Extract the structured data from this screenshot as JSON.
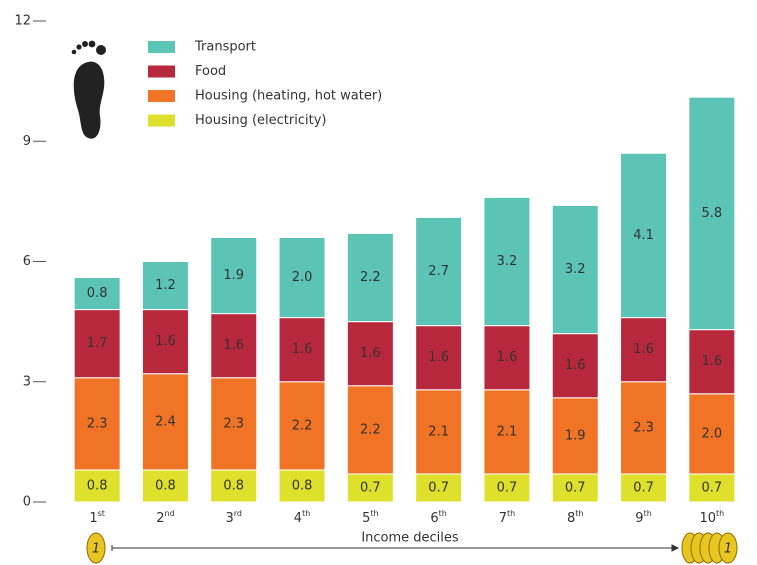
{
  "chart_data": {
    "type": "stacked_bar",
    "categories": [
      "1st",
      "2nd",
      "3rd",
      "4th",
      "5th",
      "6th",
      "7th",
      "8th",
      "9th",
      "10th"
    ],
    "series": [
      {
        "name": "Transport",
        "color": "#5cc4b5",
        "values": [
          0.8,
          1.2,
          1.9,
          2.0,
          2.2,
          2.7,
          3.2,
          3.2,
          4.1,
          5.8
        ],
        "value_labels": [
          "0.8",
          "1.2",
          "1.9",
          "2.0",
          "2.2",
          "2.7",
          "3.2",
          "3.2",
          "4.1",
          "5.8"
        ]
      },
      {
        "name": "Food",
        "color": "#b8283c",
        "values": [
          1.7,
          1.6,
          1.6,
          1.6,
          1.6,
          1.6,
          1.6,
          1.6,
          1.6,
          1.6
        ],
        "value_labels": [
          "1.7",
          "1.6",
          "1.6",
          "1.6",
          "1.6",
          "1.6",
          "1.6",
          "1.6",
          "1.6",
          "1.6"
        ]
      },
      {
        "name": "Housing (heating, hot water)",
        "color": "#f07326",
        "values": [
          2.3,
          2.4,
          2.3,
          2.2,
          2.2,
          2.1,
          2.1,
          1.9,
          2.3,
          2.0
        ],
        "value_labels": [
          "2.3",
          "2.4",
          "2.3",
          "2.2",
          "2.2",
          "2.1",
          "2.1",
          "1.9",
          "2.3",
          "2.0"
        ]
      },
      {
        "name": "Housing (electricity)",
        "color": "#dfe02c",
        "values": [
          0.8,
          0.8,
          0.8,
          0.8,
          0.7,
          0.7,
          0.7,
          0.7,
          0.7,
          0.7
        ],
        "value_labels": [
          "0.8",
          "0.8",
          "0.8",
          "0.8",
          "0.7",
          "0.7",
          "0.7",
          "0.7",
          "0.7",
          "0.7"
        ]
      }
    ],
    "ylim": [
      0,
      12
    ],
    "yticks": [
      0,
      3,
      6,
      9,
      12
    ],
    "x_label": "Income deciles",
    "annotations": [
      "1",
      "1"
    ]
  }
}
